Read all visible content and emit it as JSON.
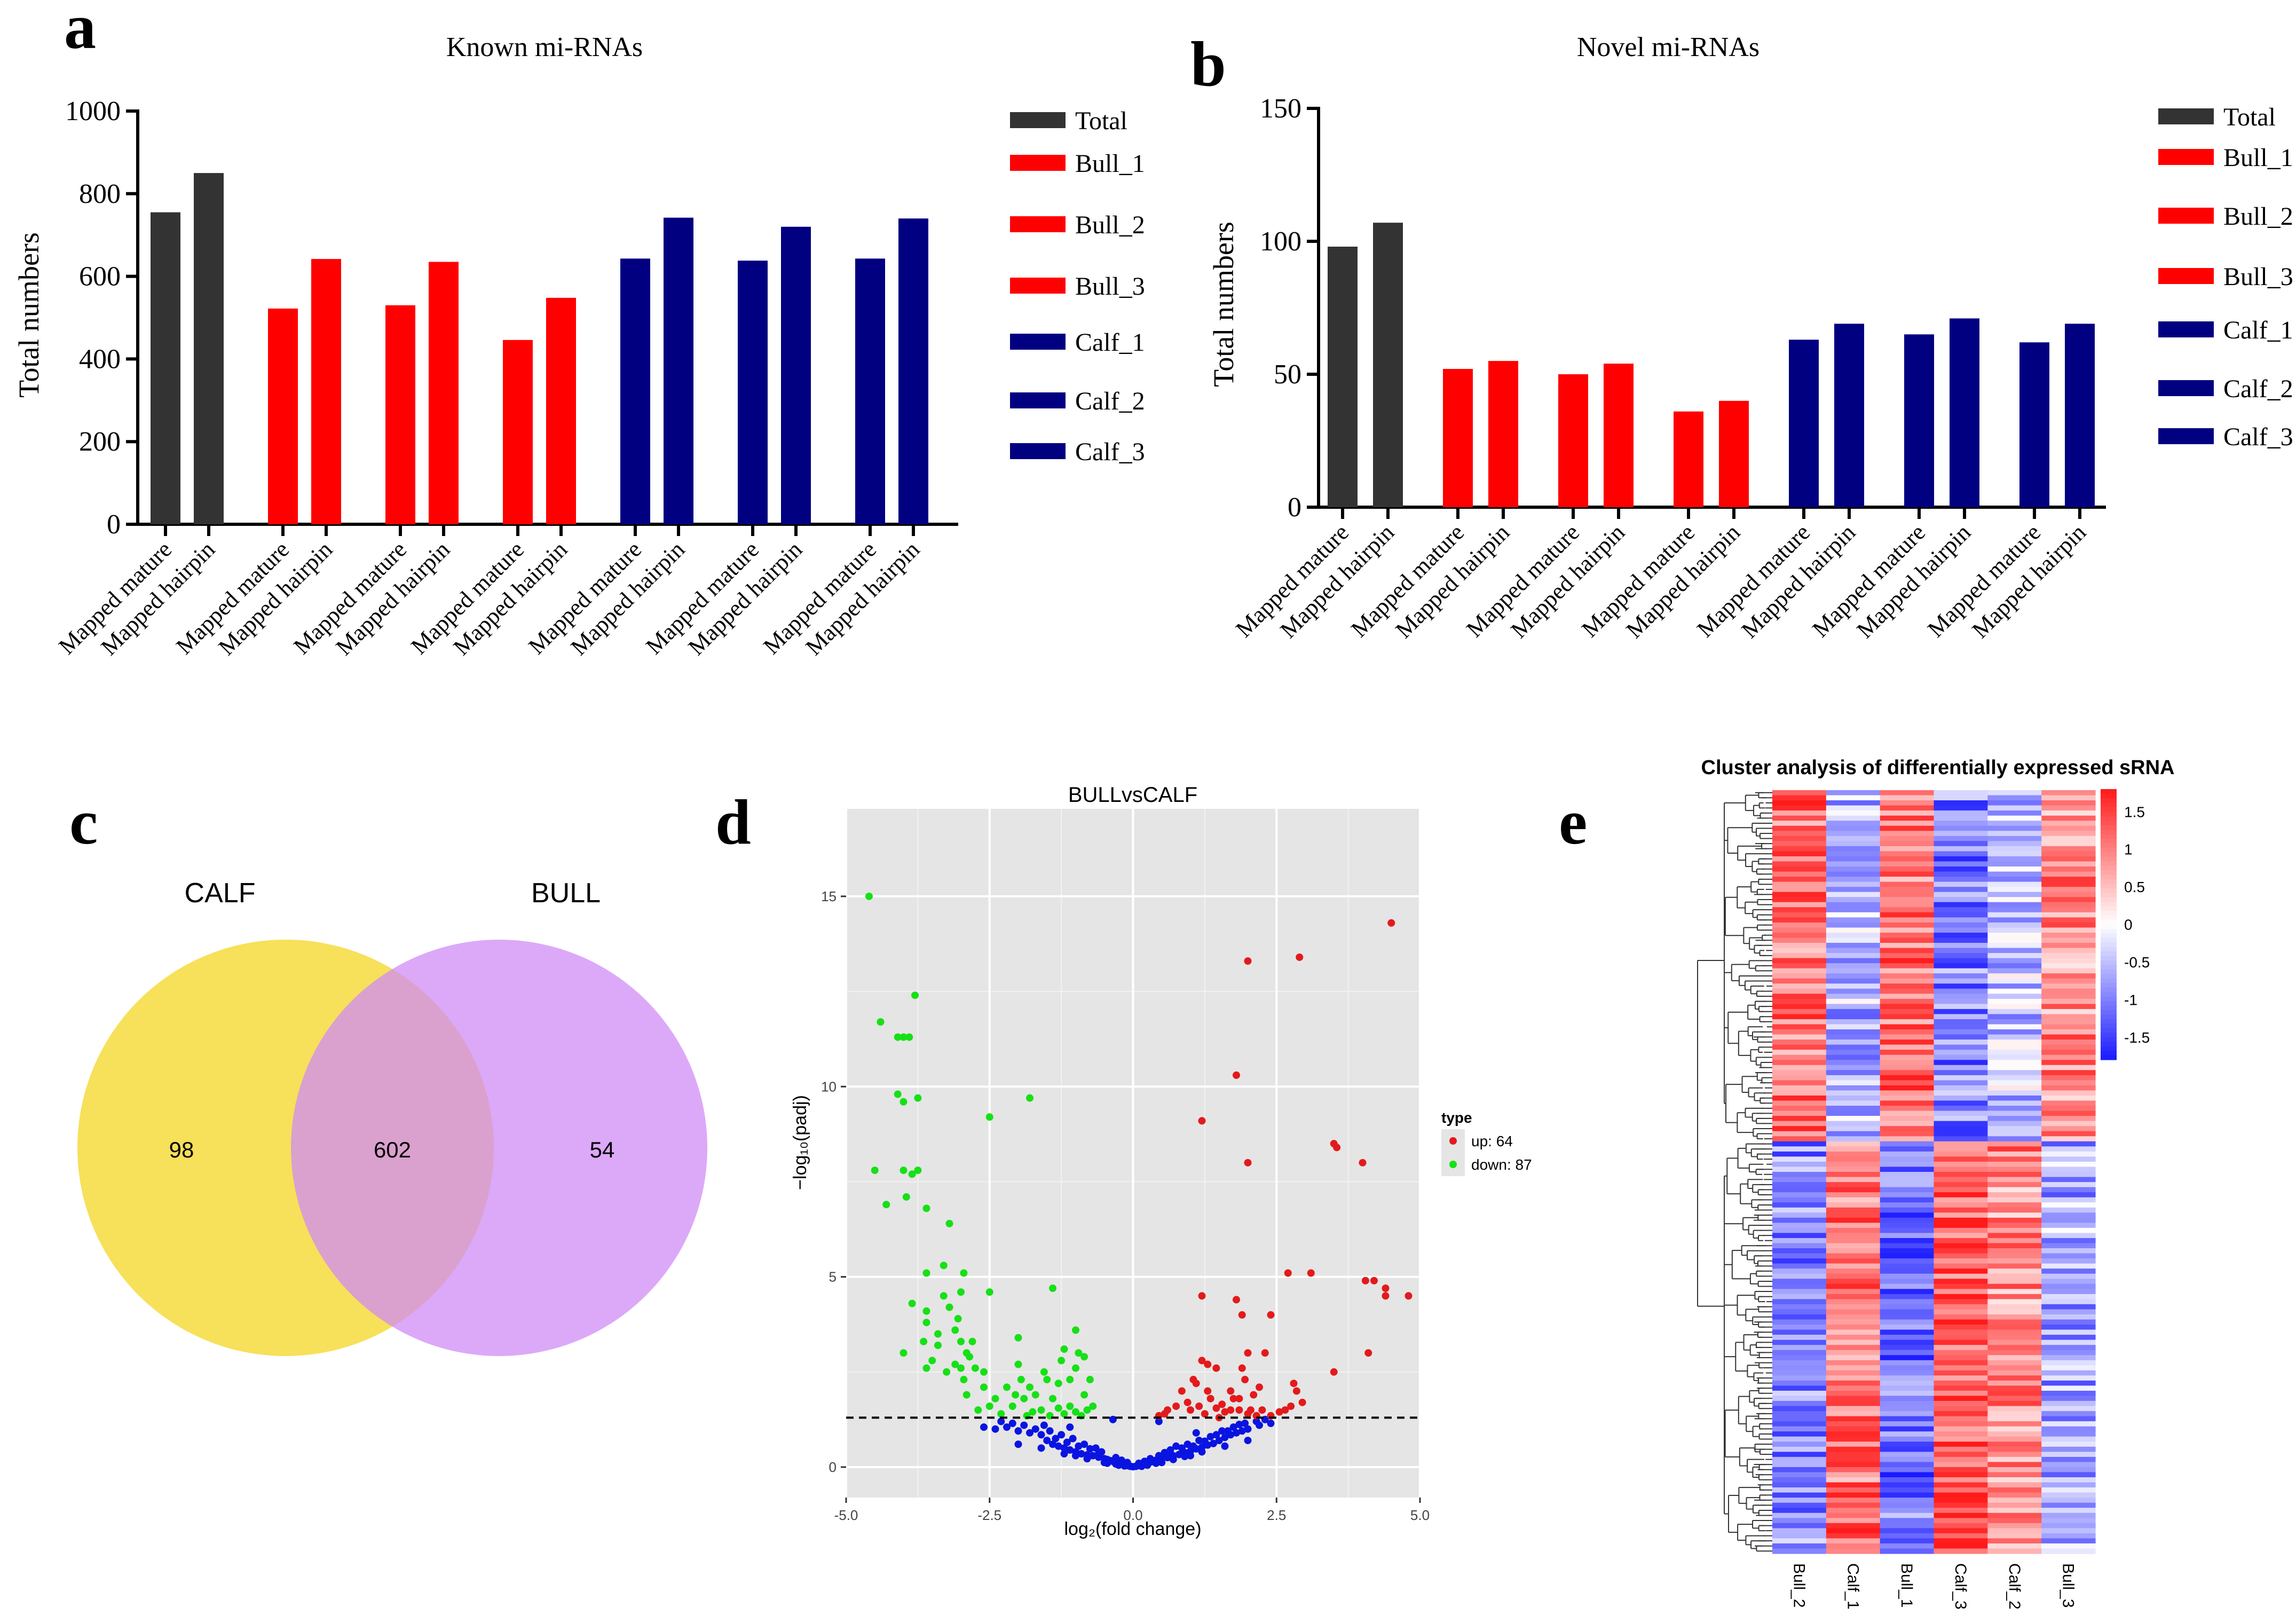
{
  "panels": {
    "a": {
      "letter": "a"
    },
    "b": {
      "letter": "b"
    },
    "c": {
      "letter": "c"
    },
    "d": {
      "letter": "d"
    },
    "e": {
      "letter": "e"
    }
  },
  "colors": {
    "total": "#333333",
    "bull": "#ff0000",
    "calf": "#000080",
    "venn_calf": "#f7e05a",
    "venn_bull": "#d08cf5",
    "volcano_bg": "#e5e5e5",
    "up": "#e31a1c",
    "down": "#16e016",
    "nosig": "#0a14e0",
    "heat_high": "#ff1a1a",
    "heat_mid": "#ffffff",
    "heat_low": "#1a1aff"
  },
  "chart_data": [
    {
      "id": "a",
      "type": "bar",
      "title": "Known mi-RNAs",
      "ylabel": "Total numbers",
      "xlabel": "",
      "ylim": [
        0,
        1000
      ],
      "yticks": [
        0,
        200,
        400,
        600,
        800,
        1000
      ],
      "categories": [
        "Mapped mature",
        "Mapped hairpin"
      ],
      "legend_position": "right",
      "series": [
        {
          "name": "Total",
          "group": "total",
          "values": [
            755,
            850
          ]
        },
        {
          "name": "Bull_1",
          "group": "bull",
          "values": [
            522,
            642
          ]
        },
        {
          "name": "Bull_2",
          "group": "bull",
          "values": [
            530,
            635
          ]
        },
        {
          "name": "Bull_3",
          "group": "bull",
          "values": [
            446,
            548
          ]
        },
        {
          "name": "Calf_1",
          "group": "calf",
          "values": [
            643,
            742
          ]
        },
        {
          "name": "Calf_2",
          "group": "calf",
          "values": [
            638,
            720
          ]
        },
        {
          "name": "Calf_3",
          "group": "calf",
          "values": [
            643,
            740
          ]
        }
      ]
    },
    {
      "id": "b",
      "type": "bar",
      "title": "Novel mi-RNAs",
      "ylabel": "Total numbers",
      "xlabel": "",
      "ylim": [
        0,
        150
      ],
      "yticks": [
        0,
        50,
        100,
        150
      ],
      "categories": [
        "Mapped mature",
        "Mapped hairpin"
      ],
      "legend_position": "right",
      "series": [
        {
          "name": "Total",
          "group": "total",
          "values": [
            98,
            107
          ]
        },
        {
          "name": "Bull_1",
          "group": "bull",
          "values": [
            52,
            55
          ]
        },
        {
          "name": "Bull_2",
          "group": "bull",
          "values": [
            50,
            54
          ]
        },
        {
          "name": "Bull_3",
          "group": "bull",
          "values": [
            36,
            40
          ]
        },
        {
          "name": "Calf_1",
          "group": "calf",
          "values": [
            63,
            69
          ]
        },
        {
          "name": "Calf_2",
          "group": "calf",
          "values": [
            65,
            71
          ]
        },
        {
          "name": "Calf_3",
          "group": "calf",
          "values": [
            62,
            69
          ]
        }
      ]
    },
    {
      "id": "c",
      "type": "venn",
      "sets": [
        "CALF",
        "BULL"
      ],
      "only_first": "98",
      "intersection": "602",
      "only_second": "54"
    },
    {
      "id": "d",
      "type": "scatter",
      "title": "BULLvsCALF",
      "xlabel": "log₂(fold change)",
      "ylabel": "−log₁₀(padj)",
      "xlim": [
        -5,
        5
      ],
      "ylim": [
        -0.8,
        17.3
      ],
      "xticks": [
        "-5.0",
        "-2.5",
        "0.0",
        "2.5",
        "5.0"
      ],
      "yticks": [
        "0",
        "5",
        "10",
        "15"
      ],
      "threshold_y": 1.3,
      "legend_title": "type",
      "legend_items": [
        {
          "key": "up",
          "label": "up: 64"
        },
        {
          "key": "down",
          "label": "down: 87"
        }
      ],
      "points_up": [
        [
          4.5,
          14.3
        ],
        [
          2.0,
          13.3
        ],
        [
          2.9,
          13.4
        ],
        [
          1.8,
          10.3
        ],
        [
          1.2,
          9.1
        ],
        [
          3.5,
          8.5
        ],
        [
          3.55,
          8.4
        ],
        [
          2.0,
          8.0
        ],
        [
          4.0,
          8.0
        ],
        [
          2.7,
          5.1
        ],
        [
          3.1,
          5.1
        ],
        [
          4.05,
          4.9
        ],
        [
          4.2,
          4.9
        ],
        [
          4.4,
          4.7
        ],
        [
          4.4,
          4.5
        ],
        [
          4.8,
          4.5
        ],
        [
          1.2,
          4.5
        ],
        [
          1.8,
          4.4
        ],
        [
          1.9,
          4.0
        ],
        [
          2.4,
          4.0
        ],
        [
          4.1,
          3.0
        ],
        [
          1.2,
          2.8
        ],
        [
          1.3,
          2.7
        ],
        [
          1.45,
          2.6
        ],
        [
          2.0,
          3.0
        ],
        [
          2.3,
          3.0
        ],
        [
          1.9,
          2.6
        ],
        [
          1.05,
          2.3
        ],
        [
          1.1,
          2.2
        ],
        [
          0.85,
          2.0
        ],
        [
          1.3,
          2.0
        ],
        [
          1.7,
          2.0
        ],
        [
          1.75,
          1.8
        ],
        [
          2.2,
          2.1
        ],
        [
          2.8,
          2.2
        ],
        [
          2.85,
          2.0
        ],
        [
          3.5,
          2.5
        ],
        [
          0.55,
          1.4
        ],
        [
          0.75,
          1.6
        ],
        [
          0.95,
          1.7
        ],
        [
          1.15,
          1.6
        ],
        [
          1.45,
          1.55
        ],
        [
          1.7,
          1.5
        ],
        [
          1.85,
          1.5
        ],
        [
          2.05,
          1.5
        ],
        [
          2.25,
          1.5
        ],
        [
          2.55,
          1.45
        ],
        [
          2.75,
          1.6
        ],
        [
          2.95,
          1.7
        ],
        [
          0.45,
          1.35
        ],
        [
          1.25,
          1.4
        ],
        [
          1.6,
          1.45
        ],
        [
          2.0,
          1.4
        ],
        [
          2.4,
          1.35
        ],
        [
          1.35,
          1.8
        ],
        [
          1.5,
          1.3
        ],
        [
          2.65,
          1.5
        ],
        [
          2.15,
          1.35
        ],
        [
          1.55,
          1.65
        ],
        [
          1.85,
          1.8
        ],
        [
          0.6,
          1.5
        ],
        [
          1.0,
          1.5
        ],
        [
          1.95,
          2.3
        ],
        [
          2.1,
          1.9
        ]
      ],
      "points_down": [
        [
          -4.6,
          15.0
        ],
        [
          -4.4,
          11.7
        ],
        [
          -3.8,
          12.4
        ],
        [
          -4.1,
          11.3
        ],
        [
          -4.0,
          11.3
        ],
        [
          -3.9,
          11.3
        ],
        [
          -4.1,
          9.8
        ],
        [
          -3.75,
          9.7
        ],
        [
          -4.0,
          9.6
        ],
        [
          -1.8,
          9.7
        ],
        [
          -2.5,
          9.2
        ],
        [
          -4.5,
          7.8
        ],
        [
          -4.0,
          7.8
        ],
        [
          -3.85,
          7.7
        ],
        [
          -3.75,
          7.8
        ],
        [
          -4.3,
          6.9
        ],
        [
          -3.95,
          7.1
        ],
        [
          -3.6,
          6.8
        ],
        [
          -3.2,
          6.4
        ],
        [
          -3.3,
          5.3
        ],
        [
          -3.6,
          5.1
        ],
        [
          -3.3,
          4.5
        ],
        [
          -2.95,
          5.1
        ],
        [
          -3.0,
          4.6
        ],
        [
          -2.5,
          4.6
        ],
        [
          -3.85,
          4.3
        ],
        [
          -3.6,
          4.1
        ],
        [
          -3.2,
          4.2
        ],
        [
          -3.6,
          3.8
        ],
        [
          -3.1,
          3.6
        ],
        [
          -3.4,
          3.5
        ],
        [
          -4.0,
          3.0
        ],
        [
          -3.65,
          3.3
        ],
        [
          -3.0,
          3.3
        ],
        [
          -2.8,
          3.3
        ],
        [
          -2.9,
          3.0
        ],
        [
          -3.5,
          2.8
        ],
        [
          -3.6,
          2.6
        ],
        [
          -3.25,
          2.5
        ],
        [
          -3.0,
          2.6
        ],
        [
          -2.95,
          2.3
        ],
        [
          -2.0,
          3.4
        ],
        [
          -1.4,
          4.7
        ],
        [
          -1.0,
          3.6
        ],
        [
          -1.2,
          3.1
        ],
        [
          -0.95,
          3.0
        ],
        [
          -0.85,
          2.9
        ],
        [
          -1.25,
          2.8
        ],
        [
          -1.55,
          2.5
        ],
        [
          -1.0,
          2.6
        ],
        [
          -1.1,
          2.3
        ],
        [
          -1.3,
          2.2
        ],
        [
          -2.0,
          2.7
        ],
        [
          -1.95,
          2.3
        ],
        [
          -1.8,
          2.1
        ],
        [
          -2.6,
          2.1
        ],
        [
          -2.2,
          2.1
        ],
        [
          -2.9,
          1.9
        ],
        [
          -2.4,
          1.8
        ],
        [
          -1.9,
          1.8
        ],
        [
          -1.7,
          1.9
        ],
        [
          -1.5,
          2.3
        ],
        [
          -1.4,
          1.8
        ],
        [
          -1.1,
          1.6
        ],
        [
          -0.85,
          1.9
        ],
        [
          -0.75,
          2.3
        ],
        [
          -0.8,
          1.5
        ],
        [
          -2.1,
          1.6
        ],
        [
          -1.6,
          1.5
        ],
        [
          -1.2,
          1.4
        ],
        [
          -0.9,
          1.35
        ],
        [
          -2.3,
          1.4
        ],
        [
          -2.7,
          1.5
        ],
        [
          -1.75,
          1.45
        ],
        [
          -1.3,
          1.55
        ],
        [
          -2.05,
          1.9
        ],
        [
          -2.5,
          1.6
        ],
        [
          -1.85,
          1.35
        ],
        [
          -1.0,
          1.45
        ],
        [
          -1.45,
          1.35
        ],
        [
          -0.7,
          1.6
        ],
        [
          -3.1,
          2.7
        ],
        [
          -2.85,
          2.9
        ],
        [
          -3.4,
          3.2
        ],
        [
          -3.05,
          3.9
        ],
        [
          -2.6,
          2.5
        ],
        [
          -2.75,
          2.6
        ]
      ],
      "points_nosig": [
        [
          -2.4,
          1.0
        ],
        [
          -2.2,
          1.05
        ],
        [
          -2.0,
          0.95
        ],
        [
          -1.8,
          0.9
        ],
        [
          -1.6,
          0.85
        ],
        [
          -1.5,
          0.7
        ],
        [
          -1.4,
          0.6
        ],
        [
          -1.3,
          0.55
        ],
        [
          -1.2,
          0.5
        ],
        [
          -1.1,
          0.45
        ],
        [
          -1.0,
          0.4
        ],
        [
          -0.9,
          0.35
        ],
        [
          -0.8,
          0.32
        ],
        [
          -0.7,
          0.3
        ],
        [
          -0.6,
          0.26
        ],
        [
          -0.5,
          0.22
        ],
        [
          -0.45,
          0.2
        ],
        [
          -0.4,
          0.17
        ],
        [
          -0.35,
          0.15
        ],
        [
          -0.3,
          0.13
        ],
        [
          -0.25,
          0.1
        ],
        [
          -0.2,
          0.08
        ],
        [
          -0.15,
          0.06
        ],
        [
          -0.1,
          0.04
        ],
        [
          -0.05,
          0.02
        ],
        [
          0.0,
          0.01
        ],
        [
          0.05,
          0.02
        ],
        [
          0.1,
          0.04
        ],
        [
          0.15,
          0.06
        ],
        [
          0.2,
          0.08
        ],
        [
          0.25,
          0.1
        ],
        [
          0.3,
          0.13
        ],
        [
          0.35,
          0.15
        ],
        [
          0.4,
          0.18
        ],
        [
          0.45,
          0.2
        ],
        [
          0.5,
          0.22
        ],
        [
          0.6,
          0.25
        ],
        [
          0.7,
          0.3
        ],
        [
          0.8,
          0.33
        ],
        [
          0.9,
          0.38
        ],
        [
          1.0,
          0.42
        ],
        [
          1.1,
          0.48
        ],
        [
          1.2,
          0.52
        ],
        [
          1.3,
          0.58
        ],
        [
          1.4,
          0.62
        ],
        [
          1.5,
          0.7
        ],
        [
          1.6,
          0.78
        ],
        [
          1.7,
          0.85
        ],
        [
          1.8,
          0.9
        ],
        [
          1.9,
          0.95
        ],
        [
          2.0,
          1.0
        ],
        [
          2.2,
          1.1
        ],
        [
          2.4,
          1.15
        ],
        [
          -1.9,
          1.1
        ],
        [
          -1.7,
          1.0
        ],
        [
          -1.45,
          0.95
        ],
        [
          -1.25,
          0.85
        ],
        [
          -1.05,
          0.75
        ],
        [
          -0.85,
          0.6
        ],
        [
          -0.65,
          0.5
        ],
        [
          -0.55,
          0.4
        ],
        [
          0.55,
          0.38
        ],
        [
          0.65,
          0.45
        ],
        [
          0.75,
          0.55
        ],
        [
          0.95,
          0.6
        ],
        [
          1.15,
          0.7
        ],
        [
          1.35,
          0.8
        ],
        [
          1.55,
          0.95
        ],
        [
          1.75,
          1.05
        ],
        [
          1.95,
          1.15
        ],
        [
          2.15,
          1.2
        ],
        [
          -2.3,
          1.2
        ],
        [
          -2.1,
          1.15
        ],
        [
          -1.55,
          1.1
        ],
        [
          -1.35,
          0.75
        ],
        [
          -1.15,
          0.65
        ],
        [
          -0.95,
          0.55
        ],
        [
          -0.75,
          0.48
        ],
        [
          -0.3,
          0.25
        ],
        [
          -0.2,
          0.18
        ],
        [
          0.2,
          0.15
        ],
        [
          0.3,
          0.22
        ],
        [
          0.45,
          0.3
        ],
        [
          0.85,
          0.5
        ],
        [
          1.05,
          0.55
        ],
        [
          1.25,
          0.68
        ],
        [
          1.45,
          0.85
        ],
        [
          1.65,
          0.95
        ],
        [
          1.85,
          1.12
        ],
        [
          -2.6,
          1.05
        ],
        [
          -0.6,
          0.35
        ],
        [
          0.6,
          0.3
        ],
        [
          1.0,
          0.3
        ],
        [
          -1.0,
          0.3
        ],
        [
          -0.3,
          0.08
        ],
        [
          0.4,
          0.1
        ],
        [
          -0.5,
          0.12
        ],
        [
          0.7,
          0.2
        ],
        [
          -0.8,
          0.22
        ],
        [
          0.9,
          0.28
        ],
        [
          -1.2,
          0.35
        ],
        [
          1.2,
          0.4
        ],
        [
          -1.6,
          0.5
        ],
        [
          1.6,
          0.55
        ],
        [
          -2.0,
          0.6
        ],
        [
          2.0,
          0.7
        ],
        [
          0.15,
          0.02
        ],
        [
          -0.15,
          0.03
        ],
        [
          0.25,
          0.05
        ],
        [
          -0.25,
          0.05
        ],
        [
          0.5,
          0.12
        ],
        [
          -0.45,
          0.1
        ],
        [
          0.1,
          0.1
        ],
        [
          -0.1,
          0.12
        ],
        [
          1.1,
          0.9
        ],
        [
          -1.1,
          1.05
        ],
        [
          0.45,
          1.2
        ],
        [
          -0.35,
          1.25
        ],
        [
          2.3,
          1.25
        ]
      ],
      "legend_note": ""
    },
    {
      "id": "e",
      "type": "heatmap",
      "title": "Cluster analysis of differentially expressed sRNA",
      "columns": [
        "Bull_2",
        "Calf_1",
        "Bull_1",
        "Calf_3",
        "Calf_2",
        "Bull_3"
      ],
      "colorbar_ticks": [
        "1.5",
        "1",
        "0.5",
        "0",
        "-0.5",
        "-1",
        "-1.5"
      ],
      "colorbar_range": [
        -1.8,
        1.8
      ],
      "column_profile_top": [
        1.1,
        -0.6,
        1.1,
        -1.0,
        -0.5,
        0.9
      ],
      "column_profile_bottom": [
        -0.9,
        1.1,
        -1.1,
        1.3,
        0.9,
        -0.7
      ]
    }
  ]
}
